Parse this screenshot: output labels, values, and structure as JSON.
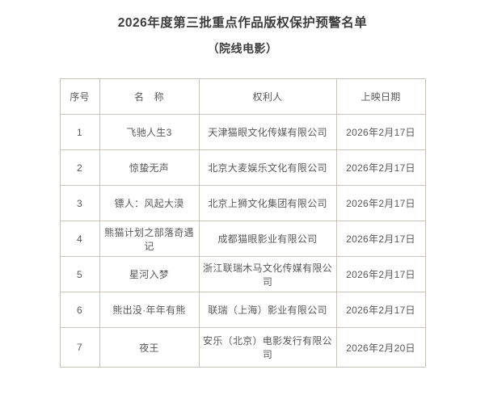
{
  "page": {
    "title": "2026年度第三批重点作品版权保护预警名单",
    "subtitle": "（院线电影）"
  },
  "table": {
    "headers": [
      "序号",
      "名　称",
      "权利人",
      "上映日期"
    ],
    "rows": [
      [
        "1",
        "飞驰人生3",
        "天津猫眼文化传媒有限公司",
        "2026年2月17日"
      ],
      [
        "2",
        "惊蛰无声",
        "北京大麦娱乐文化有限公司",
        "2026年2月17日"
      ],
      [
        "3",
        "镖人：风起大漠",
        "北京上狮文化集团有限公司",
        "2026年2月17日"
      ],
      [
        "4",
        "熊猫计划之部落奇遇记",
        "成都猫眼影业有限公司",
        "2026年2月17日"
      ],
      [
        "5",
        "星河入梦",
        "浙江联瑞木马文化传媒有限公司",
        "2026年2月17日"
      ],
      [
        "6",
        "熊出没·年年有熊",
        "联瑞（上海）影业有限公司",
        "2026年2月17日"
      ],
      [
        "7",
        "夜王",
        "安乐（北京）电影发行有限公司",
        "2026年2月20日"
      ]
    ]
  },
  "colors": {
    "background": "#ffffff",
    "border": "#c9c3bd",
    "title_text": "#3d3d3d",
    "body_text": "#595959"
  }
}
